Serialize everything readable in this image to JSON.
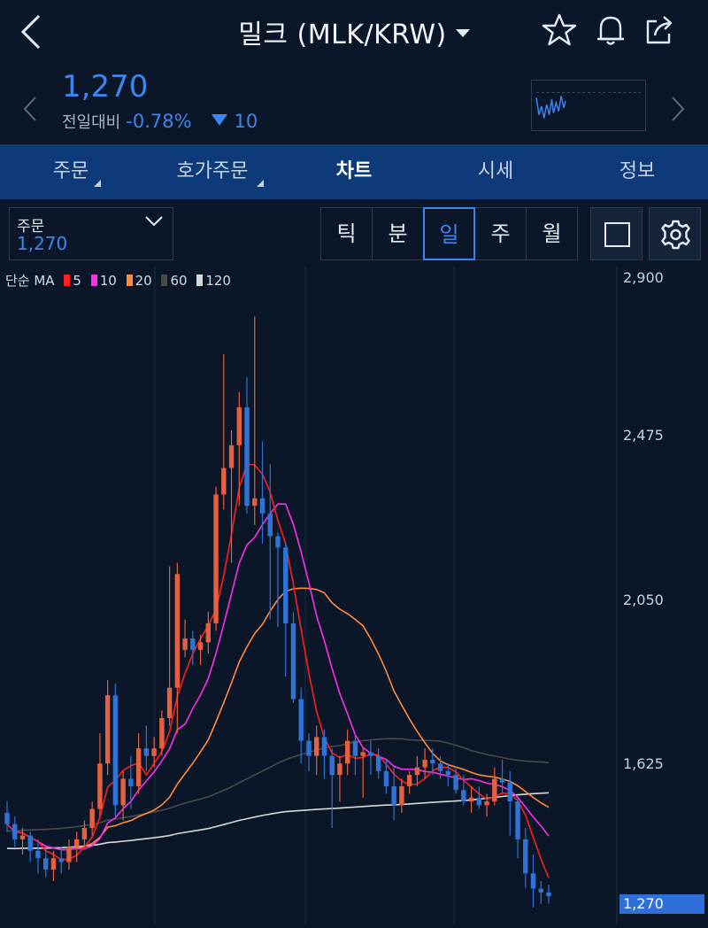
{
  "header": {
    "title": "밀크 (MLK/KRW)",
    "icons": [
      "back-chevron-icon",
      "star-icon",
      "bell-icon",
      "share-icon"
    ]
  },
  "quote": {
    "price": "1,270",
    "change_label": "전일대비",
    "change_pct": "-0.78%",
    "change_value": "10"
  },
  "tabs": [
    {
      "label": "주문"
    },
    {
      "label": "호가주문"
    },
    {
      "label": "차트"
    },
    {
      "label": "시세"
    },
    {
      "label": "정보"
    }
  ],
  "order_box": {
    "label": "주문",
    "value": "1,270"
  },
  "periods": [
    {
      "label": "틱"
    },
    {
      "label": "분"
    },
    {
      "label": "일"
    },
    {
      "label": "주"
    },
    {
      "label": "월"
    }
  ],
  "legend": {
    "title": "단순 MA",
    "items": [
      {
        "label": "5",
        "color": "#ff1e1e"
      },
      {
        "label": "10",
        "color": "#ff2ee8"
      },
      {
        "label": "20",
        "color": "#ff8a3d"
      },
      {
        "label": "60",
        "color": "#4a4a4a"
      },
      {
        "label": "120",
        "color": "#d8d8d8"
      }
    ]
  },
  "chart_data": {
    "type": "candlestick",
    "y_axis_labels": [
      "2,900",
      "2,475",
      "2,050",
      "1,625",
      "1,270"
    ],
    "ylim": [
      1200,
      2920
    ],
    "last_price": 1270,
    "up_color": "#e5603e",
    "down_color": "#2f73d6",
    "ohlc": [
      [
        1490,
        1520,
        1440,
        1460
      ],
      [
        1460,
        1480,
        1400,
        1420
      ],
      [
        1420,
        1450,
        1380,
        1430
      ],
      [
        1430,
        1440,
        1360,
        1390
      ],
      [
        1390,
        1420,
        1330,
        1370
      ],
      [
        1370,
        1400,
        1320,
        1340
      ],
      [
        1340,
        1390,
        1310,
        1370
      ],
      [
        1370,
        1400,
        1330,
        1360
      ],
      [
        1360,
        1420,
        1340,
        1400
      ],
      [
        1400,
        1440,
        1360,
        1420
      ],
      [
        1420,
        1470,
        1400,
        1450
      ],
      [
        1450,
        1520,
        1430,
        1500
      ],
      [
        1500,
        1700,
        1480,
        1620
      ],
      [
        1620,
        1840,
        1590,
        1800
      ],
      [
        1800,
        1830,
        1480,
        1510
      ],
      [
        1510,
        1600,
        1470,
        1580
      ],
      [
        1580,
        1640,
        1500,
        1560
      ],
      [
        1560,
        1700,
        1540,
        1660
      ],
      [
        1660,
        1720,
        1600,
        1640
      ],
      [
        1640,
        1690,
        1610,
        1660
      ],
      [
        1660,
        1760,
        1640,
        1740
      ],
      [
        1740,
        2140,
        1720,
        1820
      ],
      [
        1820,
        2150,
        1700,
        2120
      ],
      [
        1920,
        2000,
        1900,
        1950
      ],
      [
        1950,
        1970,
        1880,
        1920
      ],
      [
        1920,
        1960,
        1880,
        1940
      ],
      [
        1940,
        2020,
        1910,
        1990
      ],
      [
        1990,
        2350,
        1970,
        2330
      ],
      [
        2330,
        2700,
        2290,
        2400
      ],
      [
        2400,
        2500,
        2150,
        2460
      ],
      [
        2460,
        2600,
        2300,
        2560
      ],
      [
        2560,
        2640,
        2280,
        2300
      ],
      [
        2300,
        2800,
        2250,
        2320
      ],
      [
        2320,
        2470,
        2200,
        2280
      ],
      [
        2280,
        2410,
        2000,
        2220
      ],
      [
        2220,
        2230,
        1980,
        2190
      ],
      [
        2190,
        2200,
        1850,
        1990
      ],
      [
        1990,
        2020,
        1780,
        1790
      ],
      [
        1790,
        1820,
        1620,
        1680
      ],
      [
        1680,
        1700,
        1600,
        1640
      ],
      [
        1640,
        1720,
        1590,
        1690
      ],
      [
        1690,
        1710,
        1580,
        1640
      ],
      [
        1640,
        1660,
        1450,
        1590
      ],
      [
        1590,
        1640,
        1520,
        1620
      ],
      [
        1620,
        1710,
        1590,
        1680
      ],
      [
        1680,
        1700,
        1590,
        1640
      ],
      [
        1640,
        1660,
        1530,
        1650
      ],
      [
        1650,
        1680,
        1590,
        1640
      ],
      [
        1640,
        1660,
        1580,
        1600
      ],
      [
        1600,
        1630,
        1540,
        1560
      ],
      [
        1560,
        1610,
        1470,
        1510
      ],
      [
        1510,
        1580,
        1490,
        1560
      ],
      [
        1560,
        1600,
        1540,
        1590
      ],
      [
        1590,
        1640,
        1560,
        1610
      ],
      [
        1610,
        1660,
        1580,
        1630
      ],
      [
        1630,
        1660,
        1590,
        1620
      ],
      [
        1620,
        1640,
        1580,
        1600
      ],
      [
        1600,
        1620,
        1560,
        1590
      ],
      [
        1590,
        1610,
        1540,
        1550
      ],
      [
        1550,
        1590,
        1510,
        1520
      ],
      [
        1520,
        1560,
        1490,
        1530
      ],
      [
        1530,
        1560,
        1500,
        1510
      ],
      [
        1510,
        1540,
        1480,
        1520
      ],
      [
        1520,
        1610,
        1510,
        1580
      ],
      [
        1580,
        1630,
        1540,
        1570
      ],
      [
        1570,
        1600,
        1430,
        1520
      ],
      [
        1520,
        1530,
        1370,
        1420
      ],
      [
        1420,
        1450,
        1290,
        1330
      ],
      [
        1330,
        1380,
        1240,
        1290
      ],
      [
        1290,
        1310,
        1250,
        1280
      ],
      [
        1280,
        1300,
        1250,
        1270
      ]
    ]
  }
}
